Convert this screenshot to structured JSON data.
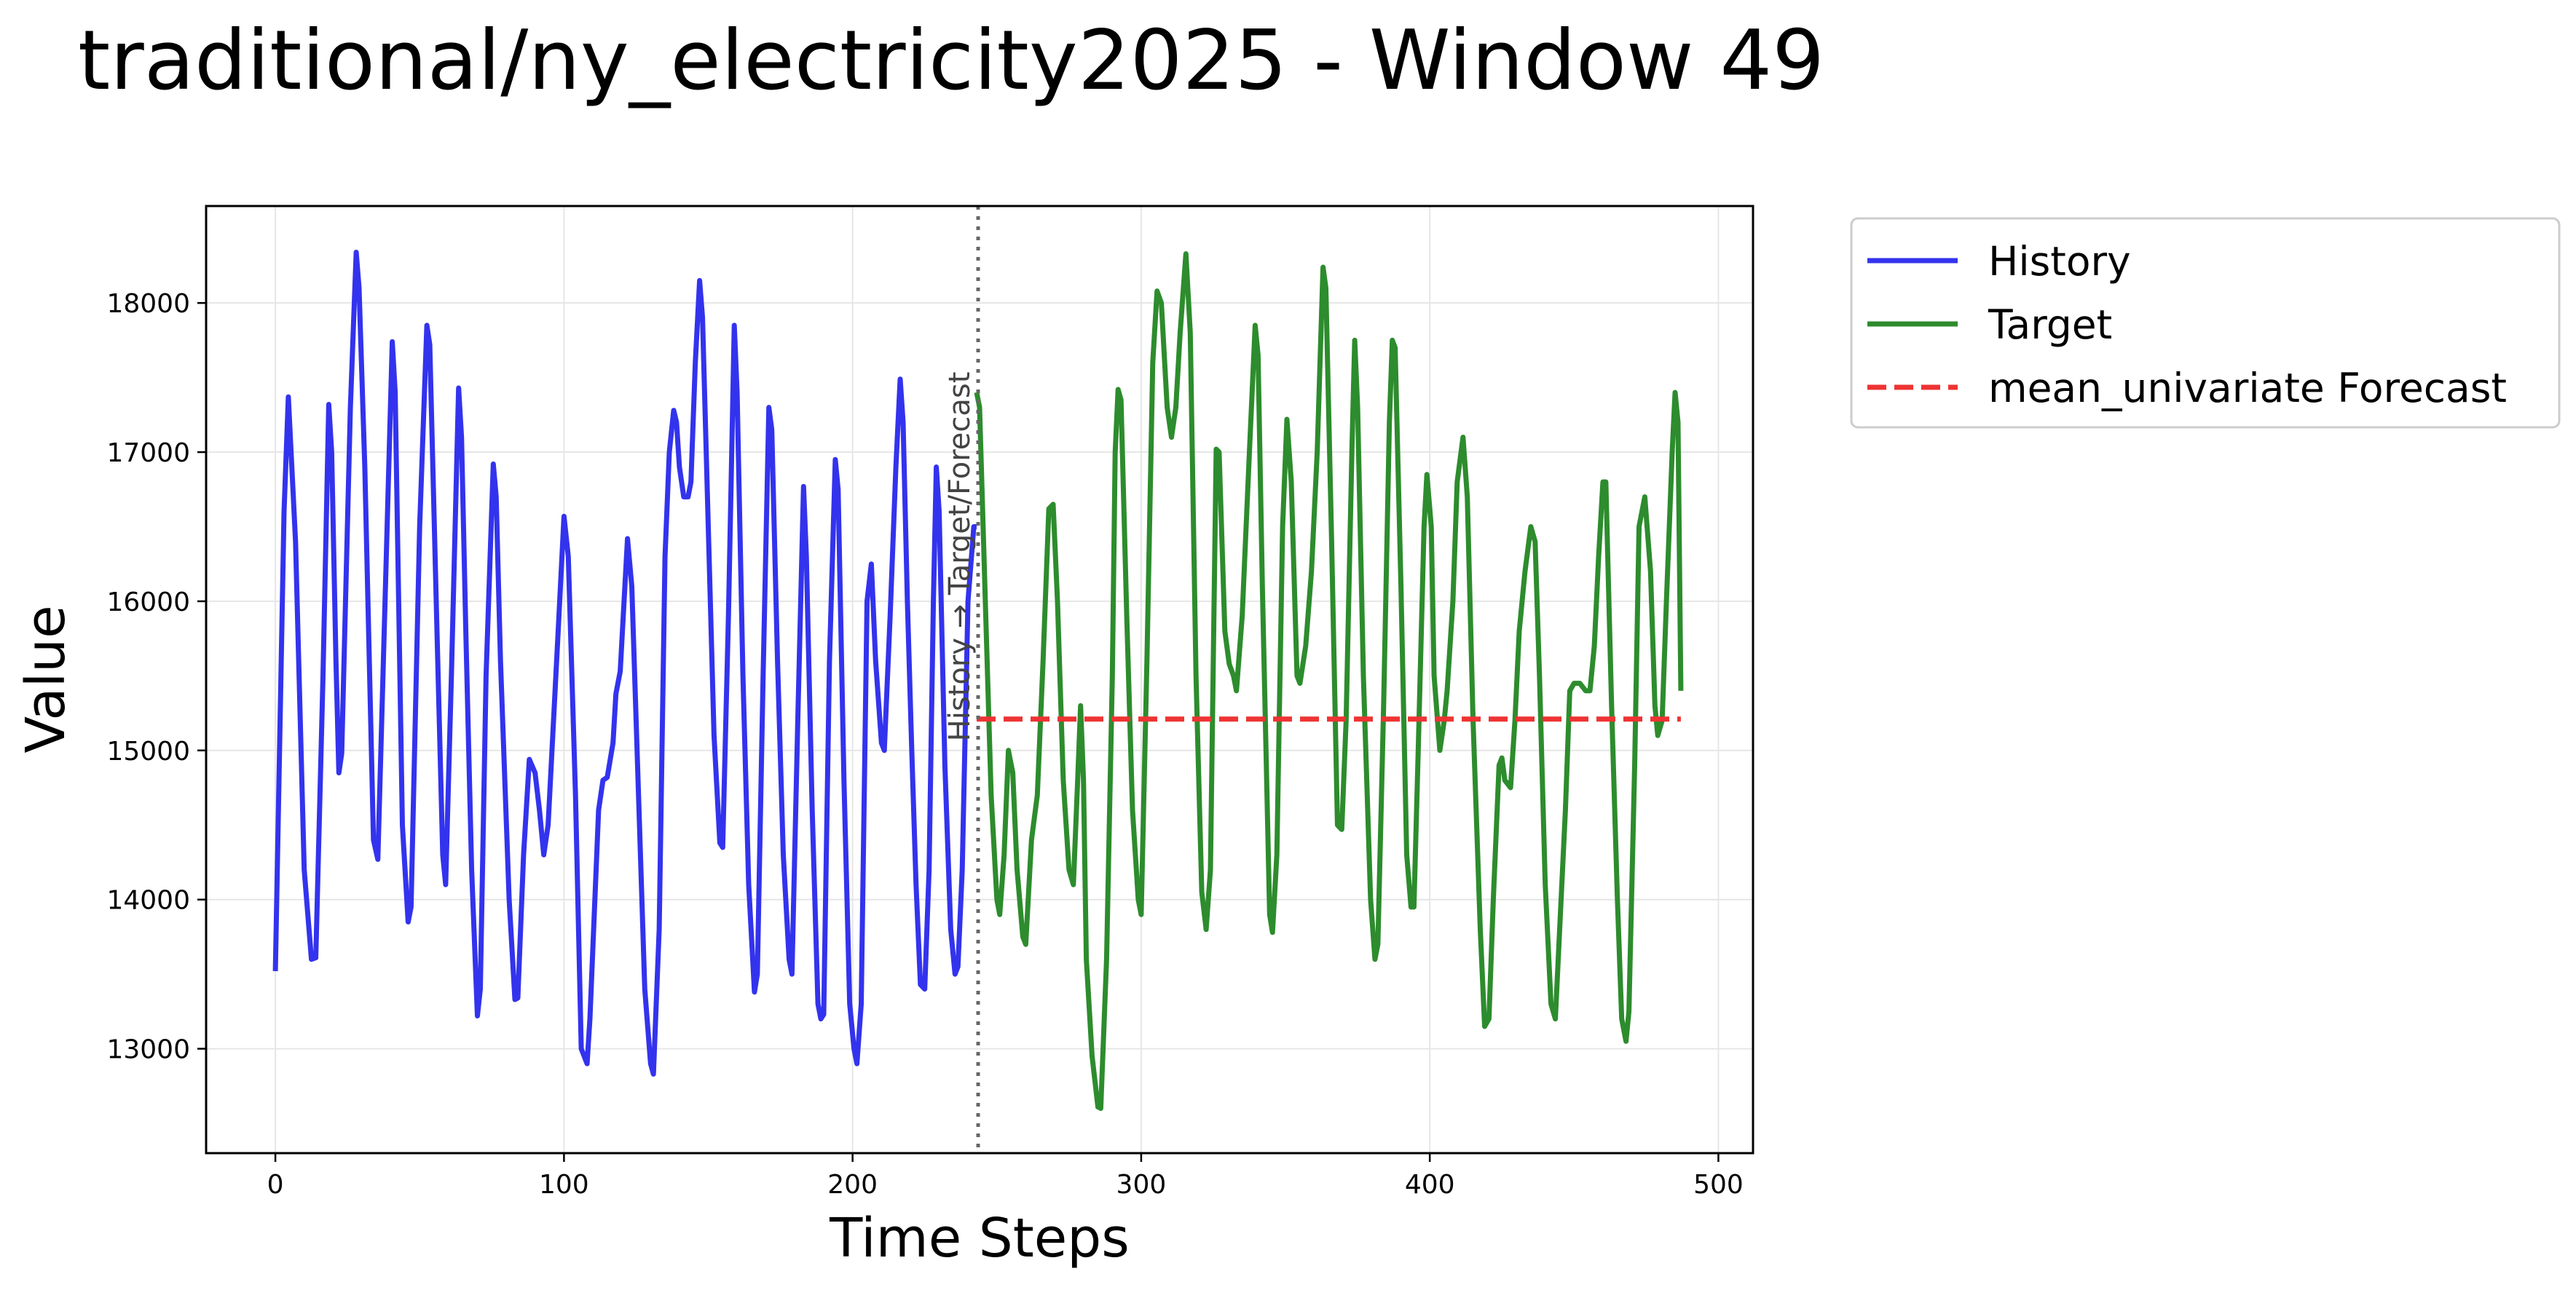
{
  "title": "traditional/ny_electricity2025 - Window 49",
  "chart_data": {
    "type": "line",
    "title": "traditional/ny_electricity2025 - Window 49",
    "xlabel": "Time Steps",
    "ylabel": "Value",
    "xlim": [
      -24,
      512
    ],
    "ylim": [
      12300,
      18650
    ],
    "x_ticks": [
      0,
      100,
      200,
      300,
      400,
      500
    ],
    "y_ticks": [
      13000,
      14000,
      15000,
      16000,
      17000,
      18000
    ],
    "grid": true,
    "legend_position": "outside-right",
    "split_x": 243.5,
    "annotation": "History → Target/Forecast",
    "series": [
      {
        "name": "History",
        "color": "#3333ee",
        "style": "solid",
        "points": [
          [
            0,
            13520
          ],
          [
            3,
            16600
          ],
          [
            4.5,
            17370
          ],
          [
            7,
            16400
          ],
          [
            10,
            14200
          ],
          [
            12.5,
            13600
          ],
          [
            14,
            13610
          ],
          [
            16.5,
            15500
          ],
          [
            18.5,
            17320
          ],
          [
            19.5,
            17000
          ],
          [
            21,
            15600
          ],
          [
            22,
            14850
          ],
          [
            23,
            14980
          ],
          [
            26,
            17300
          ],
          [
            28,
            18340
          ],
          [
            29,
            18100
          ],
          [
            31,
            16900
          ],
          [
            34,
            14400
          ],
          [
            35.5,
            14270
          ],
          [
            38,
            16000
          ],
          [
            40.5,
            17740
          ],
          [
            41.5,
            17400
          ],
          [
            44,
            14500
          ],
          [
            46,
            13850
          ],
          [
            47,
            13950
          ],
          [
            50,
            16500
          ],
          [
            52.5,
            17850
          ],
          [
            53.5,
            17720
          ],
          [
            56,
            15800
          ],
          [
            58,
            14300
          ],
          [
            59,
            14100
          ],
          [
            61,
            15500
          ],
          [
            63.5,
            17430
          ],
          [
            64.5,
            17100
          ],
          [
            66,
            15800
          ],
          [
            68,
            14200
          ],
          [
            70,
            13220
          ],
          [
            71,
            13400
          ],
          [
            73,
            15500
          ],
          [
            75.5,
            16920
          ],
          [
            76.5,
            16700
          ],
          [
            78,
            15600
          ],
          [
            81,
            14000
          ],
          [
            83,
            13330
          ],
          [
            84,
            13340
          ],
          [
            86,
            14300
          ],
          [
            88,
            14940
          ],
          [
            90,
            14850
          ],
          [
            91.5,
            14600
          ],
          [
            93,
            14300
          ],
          [
            94.5,
            14500
          ],
          [
            98,
            15800
          ],
          [
            100,
            16570
          ],
          [
            101.5,
            16300
          ],
          [
            104,
            14700
          ],
          [
            106,
            13000
          ],
          [
            108,
            12900
          ],
          [
            109,
            13200
          ],
          [
            112,
            14600
          ],
          [
            113.5,
            14800
          ],
          [
            115,
            14820
          ],
          [
            117,
            15050
          ],
          [
            118,
            15380
          ],
          [
            119.5,
            15530
          ],
          [
            122,
            16420
          ],
          [
            123.5,
            16100
          ],
          [
            126,
            14600
          ],
          [
            128,
            13400
          ],
          [
            130,
            12900
          ],
          [
            131,
            12830
          ],
          [
            133,
            13800
          ],
          [
            135,
            16300
          ],
          [
            136.5,
            17000
          ],
          [
            138,
            17280
          ],
          [
            139,
            17200
          ],
          [
            140,
            16900
          ],
          [
            141.5,
            16700
          ],
          [
            143,
            16700
          ],
          [
            144,
            16800
          ],
          [
            145.5,
            17600
          ],
          [
            147,
            18150
          ],
          [
            148,
            17900
          ],
          [
            150,
            16500
          ],
          [
            152,
            15100
          ],
          [
            154,
            14380
          ],
          [
            155,
            14350
          ],
          [
            157,
            15900
          ],
          [
            159,
            17850
          ],
          [
            160,
            17400
          ],
          [
            162,
            15500
          ],
          [
            164,
            14100
          ],
          [
            166,
            13380
          ],
          [
            167,
            13500
          ],
          [
            169,
            15500
          ],
          [
            171,
            17300
          ],
          [
            172,
            17150
          ],
          [
            174,
            15600
          ],
          [
            176,
            14300
          ],
          [
            178,
            13600
          ],
          [
            179,
            13500
          ],
          [
            181,
            15200
          ],
          [
            183,
            16770
          ],
          [
            184,
            16300
          ],
          [
            186,
            14600
          ],
          [
            188,
            13300
          ],
          [
            189,
            13200
          ],
          [
            190,
            13230
          ],
          [
            192,
            15600
          ],
          [
            194,
            16950
          ],
          [
            195,
            16750
          ],
          [
            197,
            14800
          ],
          [
            199,
            13300
          ],
          [
            200.5,
            13000
          ],
          [
            201.5,
            12900
          ],
          [
            203,
            13300
          ],
          [
            205,
            16000
          ],
          [
            206.5,
            16250
          ],
          [
            208,
            15600
          ],
          [
            210,
            15050
          ],
          [
            211,
            15000
          ],
          [
            213,
            15900
          ],
          [
            215,
            16900
          ],
          [
            216.5,
            17490
          ],
          [
            217.5,
            17200
          ],
          [
            219,
            16000
          ],
          [
            220.5,
            15000
          ],
          [
            222,
            14100
          ],
          [
            223.5,
            13430
          ],
          [
            225,
            13400
          ],
          [
            226.5,
            14200
          ],
          [
            228,
            16000
          ],
          [
            229,
            16900
          ],
          [
            230,
            16600
          ],
          [
            232,
            14900
          ],
          [
            234,
            13800
          ],
          [
            235.5,
            13500
          ],
          [
            236.5,
            13550
          ],
          [
            238,
            14200
          ],
          [
            240,
            16000
          ],
          [
            242,
            16500
          ],
          [
            243,
            16500
          ]
        ]
      },
      {
        "name": "Target",
        "color": "#2d8c2d",
        "style": "solid",
        "points": [
          [
            243,
            17400
          ],
          [
            244,
            17300
          ],
          [
            246,
            16000
          ],
          [
            248,
            14700
          ],
          [
            250,
            14000
          ],
          [
            251,
            13900
          ],
          [
            252.5,
            14300
          ],
          [
            254,
            15000
          ],
          [
            255.5,
            14850
          ],
          [
            257,
            14200
          ],
          [
            259,
            13750
          ],
          [
            260,
            13700
          ],
          [
            262,
            14400
          ],
          [
            264,
            14700
          ],
          [
            266,
            15600
          ],
          [
            268,
            16620
          ],
          [
            269.5,
            16650
          ],
          [
            271,
            16000
          ],
          [
            273,
            14800
          ],
          [
            275,
            14200
          ],
          [
            276.5,
            14100
          ],
          [
            278,
            14800
          ],
          [
            279,
            15300
          ],
          [
            280,
            14800
          ],
          [
            281,
            13600
          ],
          [
            283,
            12950
          ],
          [
            285,
            12610
          ],
          [
            286,
            12600
          ],
          [
            288,
            13600
          ],
          [
            290,
            15500
          ],
          [
            291,
            17000
          ],
          [
            292,
            17420
          ],
          [
            293,
            17350
          ],
          [
            295,
            15900
          ],
          [
            297,
            14600
          ],
          [
            299,
            14000
          ],
          [
            300,
            13900
          ],
          [
            302,
            15600
          ],
          [
            304,
            17600
          ],
          [
            305.5,
            18080
          ],
          [
            307,
            18000
          ],
          [
            309,
            17300
          ],
          [
            310.5,
            17100
          ],
          [
            312,
            17300
          ],
          [
            313.5,
            17800
          ],
          [
            315.5,
            18330
          ],
          [
            317,
            17800
          ],
          [
            319,
            15500
          ],
          [
            321,
            14050
          ],
          [
            322.5,
            13800
          ],
          [
            324,
            14200
          ],
          [
            326,
            17020
          ],
          [
            327,
            17000
          ],
          [
            329,
            15800
          ],
          [
            330.5,
            15580
          ],
          [
            332,
            15500
          ],
          [
            333,
            15400
          ],
          [
            335,
            15900
          ],
          [
            337.5,
            17000
          ],
          [
            339.5,
            17850
          ],
          [
            340.5,
            17650
          ],
          [
            342,
            16100
          ],
          [
            344.5,
            13900
          ],
          [
            345.5,
            13780
          ],
          [
            347,
            14300
          ],
          [
            349,
            16500
          ],
          [
            350.5,
            17220
          ],
          [
            352,
            16800
          ],
          [
            354,
            15500
          ],
          [
            355,
            15450
          ],
          [
            357,
            15700
          ],
          [
            359,
            16200
          ],
          [
            361,
            17000
          ],
          [
            363,
            18240
          ],
          [
            364,
            18100
          ],
          [
            366,
            16400
          ],
          [
            368,
            14500
          ],
          [
            369.5,
            14470
          ],
          [
            371,
            15200
          ],
          [
            373,
            17000
          ],
          [
            374,
            17750
          ],
          [
            375,
            17300
          ],
          [
            377,
            15500
          ],
          [
            379.5,
            14000
          ],
          [
            381,
            13600
          ],
          [
            382,
            13700
          ],
          [
            384,
            15300
          ],
          [
            386,
            17200
          ],
          [
            387,
            17750
          ],
          [
            388,
            17700
          ],
          [
            390,
            16100
          ],
          [
            392,
            14300
          ],
          [
            393.5,
            13950
          ],
          [
            394.5,
            13950
          ],
          [
            396,
            15000
          ],
          [
            398,
            16500
          ],
          [
            399,
            16850
          ],
          [
            400.5,
            16500
          ],
          [
            401.5,
            15500
          ],
          [
            403.5,
            15000
          ],
          [
            405,
            15200
          ],
          [
            406,
            15400
          ],
          [
            408,
            16000
          ],
          [
            409.5,
            16800
          ],
          [
            411.5,
            17100
          ],
          [
            413,
            16700
          ],
          [
            415,
            15200
          ],
          [
            417.5,
            13800
          ],
          [
            419,
            13150
          ],
          [
            420.5,
            13200
          ],
          [
            422,
            14000
          ],
          [
            424,
            14900
          ],
          [
            425,
            14950
          ],
          [
            426,
            14800
          ],
          [
            428,
            14750
          ],
          [
            429.5,
            15200
          ],
          [
            431,
            15800
          ],
          [
            433,
            16200
          ],
          [
            435,
            16500
          ],
          [
            436.5,
            16400
          ],
          [
            438,
            15500
          ],
          [
            440,
            14100
          ],
          [
            442,
            13300
          ],
          [
            443.5,
            13200
          ],
          [
            445,
            13800
          ],
          [
            447,
            14600
          ],
          [
            448.5,
            15400
          ],
          [
            450,
            15450
          ],
          [
            452,
            15450
          ],
          [
            454,
            15400
          ],
          [
            455.5,
            15400
          ],
          [
            457,
            15700
          ],
          [
            458.5,
            16300
          ],
          [
            460,
            16800
          ],
          [
            461,
            16800
          ],
          [
            463,
            15300
          ],
          [
            465,
            14000
          ],
          [
            466.5,
            13200
          ],
          [
            468,
            13050
          ],
          [
            469,
            13250
          ],
          [
            471,
            14900
          ],
          [
            472.5,
            16500
          ],
          [
            474.5,
            16700
          ],
          [
            476.5,
            16200
          ],
          [
            478,
            15300
          ],
          [
            479,
            15100
          ],
          [
            480.5,
            15200
          ],
          [
            482,
            16000
          ],
          [
            484,
            17000
          ],
          [
            485,
            17400
          ],
          [
            486,
            17200
          ],
          [
            487,
            15400
          ]
        ]
      },
      {
        "name": "mean_univariate Forecast",
        "color": "#ee3333",
        "style": "dashed",
        "points": [
          [
            243,
            15210
          ],
          [
            487,
            15210
          ]
        ]
      }
    ]
  }
}
